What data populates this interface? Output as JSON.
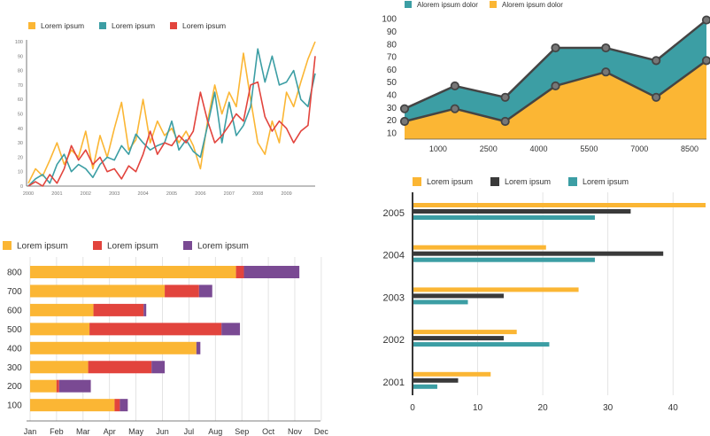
{
  "colors": {
    "yellow": "#fbb634",
    "teal": "#3c9ea4",
    "red": "#e2443d",
    "purple": "#7a4a93",
    "dark": "#3a3a3a",
    "axis": "#555555",
    "grid": "#dddddd"
  },
  "chart_data": [
    {
      "type": "line",
      "legend": [
        "Lorem ipsum",
        "Lorem ipsum",
        "Lorem ipsum"
      ],
      "x_ticks": [
        "2000",
        "2001",
        "2002",
        "2003",
        "2004",
        "2005",
        "2006",
        "2007",
        "2008",
        "2009"
      ],
      "xlim": [
        0,
        10
      ],
      "y_ticks": [
        "0",
        "10",
        "20",
        "30",
        "40",
        "50",
        "60",
        "70",
        "80",
        "90",
        "100"
      ],
      "ylim": [
        0,
        100
      ],
      "grid": false,
      "series": [
        {
          "values": [
            [
              0,
              2
            ],
            [
              0.25,
              12
            ],
            [
              0.5,
              7
            ],
            [
              0.75,
              18
            ],
            [
              1,
              30
            ],
            [
              1.25,
              15
            ],
            [
              1.5,
              25
            ],
            [
              1.75,
              20
            ],
            [
              2,
              38
            ],
            [
              2.25,
              12
            ],
            [
              2.5,
              35
            ],
            [
              2.75,
              20
            ],
            [
              3,
              40
            ],
            [
              3.25,
              58
            ],
            [
              3.5,
              25
            ],
            [
              3.75,
              32
            ],
            [
              4,
              60
            ],
            [
              4.25,
              30
            ],
            [
              4.5,
              45
            ],
            [
              4.75,
              35
            ],
            [
              5,
              40
            ],
            [
              5.25,
              30
            ],
            [
              5.5,
              38
            ],
            [
              5.75,
              28
            ],
            [
              6,
              12
            ],
            [
              6.25,
              45
            ],
            [
              6.5,
              70
            ],
            [
              6.75,
              50
            ],
            [
              7,
              65
            ],
            [
              7.25,
              55
            ],
            [
              7.5,
              92
            ],
            [
              7.75,
              60
            ],
            [
              8,
              30
            ],
            [
              8.25,
              22
            ],
            [
              8.5,
              45
            ],
            [
              8.75,
              30
            ],
            [
              9,
              65
            ],
            [
              9.25,
              55
            ],
            [
              9.5,
              72
            ],
            [
              9.75,
              88
            ],
            [
              10,
              100
            ]
          ]
        },
        {
          "values": [
            [
              0,
              0
            ],
            [
              0.25,
              5
            ],
            [
              0.5,
              8
            ],
            [
              0.75,
              2
            ],
            [
              1,
              15
            ],
            [
              1.25,
              22
            ],
            [
              1.5,
              10
            ],
            [
              1.75,
              15
            ],
            [
              2,
              12
            ],
            [
              2.25,
              6
            ],
            [
              2.5,
              15
            ],
            [
              2.75,
              20
            ],
            [
              3,
              18
            ],
            [
              3.25,
              28
            ],
            [
              3.5,
              22
            ],
            [
              3.75,
              36
            ],
            [
              4,
              30
            ],
            [
              4.25,
              25
            ],
            [
              4.5,
              28
            ],
            [
              4.75,
              30
            ],
            [
              5,
              45
            ],
            [
              5.25,
              25
            ],
            [
              5.5,
              32
            ],
            [
              5.75,
              24
            ],
            [
              6,
              20
            ],
            [
              6.25,
              42
            ],
            [
              6.5,
              65
            ],
            [
              6.75,
              30
            ],
            [
              7,
              58
            ],
            [
              7.25,
              35
            ],
            [
              7.5,
              42
            ],
            [
              7.75,
              55
            ],
            [
              8,
              95
            ],
            [
              8.25,
              72
            ],
            [
              8.5,
              90
            ],
            [
              8.75,
              70
            ],
            [
              9,
              72
            ],
            [
              9.25,
              80
            ],
            [
              9.5,
              60
            ],
            [
              9.75,
              55
            ],
            [
              10,
              78
            ]
          ]
        },
        {
          "values": [
            [
              0,
              0
            ],
            [
              0.25,
              3
            ],
            [
              0.5,
              0
            ],
            [
              0.75,
              8
            ],
            [
              1,
              2
            ],
            [
              1.25,
              12
            ],
            [
              1.5,
              28
            ],
            [
              1.75,
              18
            ],
            [
              2,
              25
            ],
            [
              2.25,
              15
            ],
            [
              2.5,
              20
            ],
            [
              2.75,
              10
            ],
            [
              3,
              12
            ],
            [
              3.25,
              5
            ],
            [
              3.5,
              14
            ],
            [
              3.75,
              10
            ],
            [
              4,
              22
            ],
            [
              4.25,
              38
            ],
            [
              4.5,
              22
            ],
            [
              4.75,
              30
            ],
            [
              5,
              28
            ],
            [
              5.25,
              35
            ],
            [
              5.5,
              30
            ],
            [
              5.75,
              38
            ],
            [
              6,
              65
            ],
            [
              6.25,
              45
            ],
            [
              6.5,
              30
            ],
            [
              6.75,
              35
            ],
            [
              7,
              42
            ],
            [
              7.25,
              50
            ],
            [
              7.5,
              45
            ],
            [
              7.75,
              70
            ],
            [
              8,
              72
            ],
            [
              8.25,
              48
            ],
            [
              8.5,
              38
            ],
            [
              8.75,
              45
            ],
            [
              9,
              40
            ],
            [
              9.25,
              30
            ],
            [
              9.5,
              38
            ],
            [
              9.75,
              42
            ],
            [
              10,
              90
            ]
          ]
        }
      ]
    },
    {
      "type": "area",
      "legend": [
        "Alorem ipsum dolor",
        "Alorem ipsum dolor"
      ],
      "x_ticks": [
        "1000",
        "2500",
        "4000",
        "5500",
        "7000",
        "8500"
      ],
      "xlim": [
        0,
        9
      ],
      "y_ticks": [
        "10",
        "20",
        "30",
        "40",
        "50",
        "60",
        "70",
        "80",
        "90",
        "100"
      ],
      "ylim": [
        5,
        105
      ],
      "x": [
        0,
        1.5,
        3,
        4.5,
        6,
        7.5,
        9
      ],
      "series": [
        {
          "values": [
            29,
            47,
            38,
            77,
            77,
            67,
            99
          ]
        },
        {
          "values": [
            19,
            29,
            19,
            47,
            58,
            38,
            67
          ]
        }
      ]
    },
    {
      "type": "bar",
      "orientation": "horizontal",
      "stacked": true,
      "legend": [
        "Lorem ipsum",
        "Lorem ipsum",
        "Lorem ipsum"
      ],
      "categories": [
        "800",
        "700",
        "600",
        "500",
        "400",
        "300",
        "200",
        "100"
      ],
      "x_ticks": [
        "Jan",
        "Feb",
        "Mar",
        "Apr",
        "May",
        "Jun",
        "Jul",
        "Aug",
        "Sep",
        "Oct",
        "Nov",
        "Dec"
      ],
      "xlim": [
        0,
        11
      ],
      "grid": true,
      "series": [
        {
          "values": [
            7.8,
            5.1,
            2.4,
            2.25,
            6.3,
            2.2,
            1.0,
            3.2
          ]
        },
        {
          "values": [
            0.3,
            1.3,
            1.9,
            5.0,
            0.0,
            2.4,
            0.1,
            0.2
          ]
        },
        {
          "values": [
            2.1,
            0.5,
            0.1,
            0.7,
            0.15,
            0.5,
            1.2,
            0.3
          ]
        }
      ]
    },
    {
      "type": "bar",
      "orientation": "horizontal",
      "stacked": false,
      "legend": [
        "Lorem ipsum",
        "Lorem ipsum",
        "Lorem ipsum"
      ],
      "categories": [
        "2005",
        "2004",
        "2003",
        "2002",
        "2001"
      ],
      "x_ticks": [
        "0",
        "10",
        "20",
        "30",
        "40"
      ],
      "xlim": [
        0,
        45
      ],
      "grid": true,
      "series": [
        {
          "values": [
            45,
            20.5,
            25.5,
            16,
            12
          ]
        },
        {
          "values": [
            33.5,
            38.5,
            14,
            14,
            7
          ]
        },
        {
          "values": [
            28,
            28,
            8.5,
            21,
            3.8
          ]
        }
      ]
    }
  ]
}
